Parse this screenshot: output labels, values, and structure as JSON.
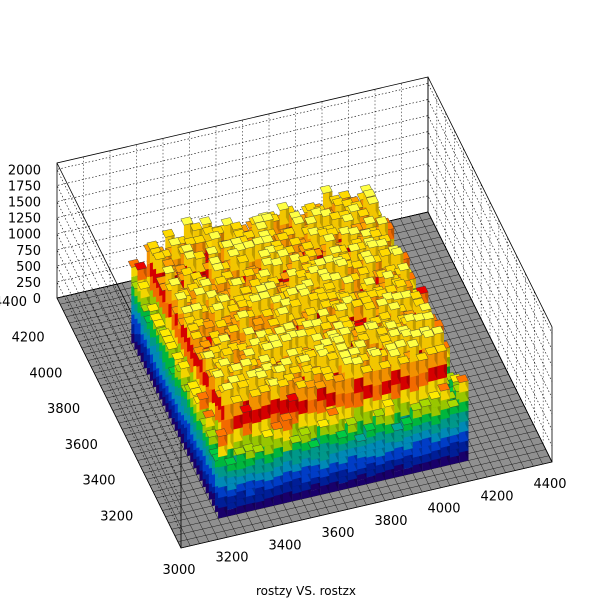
{
  "chart_data": {
    "type": "lego3d",
    "title": "rostzy VS. rostzx",
    "xlabel": "",
    "ylabel": "",
    "zlabel": "",
    "xlim": [
      3000,
      4400
    ],
    "ylim": [
      3000,
      4400
    ],
    "zlim": [
      0,
      2100
    ],
    "grid": true,
    "x_ticks": [
      "3000",
      "3200",
      "3400",
      "3600",
      "3800",
      "4000",
      "4200",
      "4400"
    ],
    "y_ticks": [
      "3200",
      "3400",
      "3600",
      "3800",
      "4000",
      "4200",
      "4400"
    ],
    "z_ticks": [
      "0",
      "250",
      "500",
      "750",
      "1000",
      "1250",
      "1500",
      "1750",
      "2000"
    ],
    "x_range_filled": [
      3150,
      4100
    ],
    "y_range_filled": [
      3100,
      4100
    ],
    "plateau_height": 1700,
    "peak_height": 2050,
    "palette": [
      "#1a0070",
      "#00209f",
      "#0040d0",
      "#0090c0",
      "#00a090",
      "#00c040",
      "#a0d000",
      "#ffe000",
      "#ff7000",
      "#e00000",
      "#ff9900",
      "#ffd000",
      "#ffff40",
      "#ffffc0"
    ]
  }
}
